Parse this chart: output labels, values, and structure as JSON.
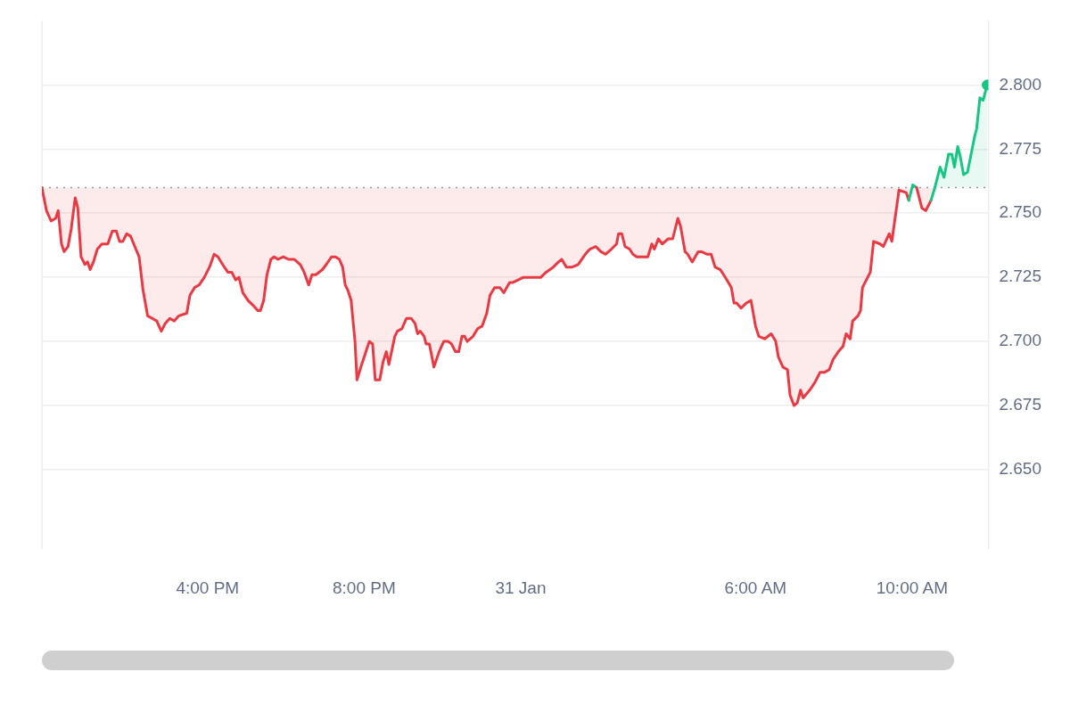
{
  "chart_data": {
    "type": "area",
    "xlim": [
      "--01-30T11:46",
      "--01-31T11:57"
    ],
    "xticks": [
      {
        "value": "--01-30T16:00",
        "label": "4:00 PM"
      },
      {
        "value": "--01-30T20:00",
        "label": "8:00 PM"
      },
      {
        "value": "--01-31T00:00",
        "label": "31 Jan"
      },
      {
        "value": "--01-31T06:00",
        "label": "6:00 AM"
      },
      {
        "value": "--01-31T10:00",
        "label": "10:00 AM"
      }
    ],
    "ylim": [
      2.619,
      2.825
    ],
    "yticks": [
      {
        "value": 2.65,
        "label": "2.650"
      },
      {
        "value": 2.675,
        "label": "2.675"
      },
      {
        "value": 2.7,
        "label": "2.700"
      },
      {
        "value": 2.725,
        "label": "2.725"
      },
      {
        "value": 2.75,
        "label": "2.750"
      },
      {
        "value": 2.775,
        "label": "2.775"
      },
      {
        "value": 2.8,
        "label": "2.800"
      }
    ],
    "grid": "y",
    "legend": false,
    "ref_lines": [
      {
        "axis": "y",
        "value": 2.76,
        "color": "#999999",
        "line_style": "dotted"
      }
    ],
    "series": [
      {
        "color": "#ea3943",
        "x": [
          "--01-30T11:46",
          "--01-30T11:53",
          "--01-30T12:00",
          "--01-30T12:07",
          "--01-30T12:11",
          "--01-30T12:16",
          "--01-30T12:20",
          "--01-30T12:26",
          "--01-30T12:31",
          "--01-30T12:37",
          "--01-30T12:41",
          "--01-30T12:46",
          "--01-30T12:52",
          "--01-30T12:56",
          "--01-30T13:00",
          "--01-30T13:05",
          "--01-30T13:11",
          "--01-30T13:18",
          "--01-30T13:27",
          "--01-30T13:34",
          "--01-30T13:40",
          "--01-30T13:45",
          "--01-30T13:50",
          "--01-30T13:56",
          "--01-30T14:02",
          "--01-30T14:10",
          "--01-30T14:15",
          "--01-30T14:21",
          "--01-30T14:28",
          "--01-30T14:35",
          "--01-30T14:42",
          "--01-30T14:49",
          "--01-30T14:55",
          "--01-30T15:02",
          "--01-30T15:09",
          "--01-30T15:16",
          "--01-30T15:28",
          "--01-30T15:33",
          "--01-30T15:40",
          "--01-30T15:47",
          "--01-30T15:55",
          "--01-30T16:03",
          "--01-30T16:10",
          "--01-30T16:16",
          "--01-30T16:23",
          "--01-30T16:31",
          "--01-30T16:37",
          "--01-30T16:43",
          "--01-30T16:48",
          "--01-30T16:54",
          "--01-30T17:02",
          "--01-30T17:10",
          "--01-30T17:17",
          "--01-30T17:21",
          "--01-30T17:26",
          "--01-30T17:31",
          "--01-30T17:37",
          "--01-30T17:42",
          "--01-30T17:48",
          "--01-30T17:56",
          "--01-30T18:04",
          "--01-30T18:13",
          "--01-30T18:22",
          "--01-30T18:28",
          "--01-30T18:35",
          "--01-30T18:40",
          "--01-30T18:46",
          "--01-30T18:56",
          "--01-30T19:02",
          "--01-30T19:10",
          "--01-30T19:16",
          "--01-30T19:22",
          "--01-30T19:27",
          "--01-30T19:31",
          "--01-30T19:35",
          "--01-30T19:40",
          "--01-30T19:46",
          "--01-30T19:49",
          "--01-30T19:55",
          "--01-30T20:04",
          "--01-30T20:08",
          "--01-30T20:13",
          "--01-30T20:17",
          "--01-30T20:24",
          "--01-30T20:29",
          "--01-30T20:34",
          "--01-30T20:38",
          "--01-30T20:47",
          "--01-30T20:51",
          "--01-30T20:58",
          "--01-30T21:05",
          "--01-30T21:12",
          "--01-30T21:18",
          "--01-30T21:22",
          "--01-30T21:26",
          "--01-30T21:32",
          "--01-30T21:35",
          "--01-30T21:40",
          "--01-30T21:47",
          "--01-30T21:55",
          "--01-30T22:02",
          "--01-30T22:09",
          "--01-30T22:14",
          "--01-30T22:20",
          "--01-30T22:25",
          "--01-30T22:30",
          "--01-30T22:34",
          "--01-30T22:38",
          "--01-30T22:47",
          "--01-30T22:54",
          "--01-30T23:01",
          "--01-30T23:08",
          "--01-30T23:13",
          "--01-30T23:20",
          "--01-30T23:28",
          "--01-30T23:34",
          "--01-30T23:43",
          "--01-30T23:48",
          "--01-30T23:56",
          "--01-31T00:04",
          "--01-31T00:12",
          "--01-31T00:22",
          "--01-31T00:31",
          "--01-31T00:39",
          "--01-31T00:50",
          "--01-31T00:58",
          "--01-31T01:03",
          "--01-31T01:10",
          "--01-31T01:19",
          "--01-31T01:28",
          "--01-31T01:39",
          "--01-31T01:46",
          "--01-31T01:55",
          "--01-31T02:03",
          "--01-31T02:10",
          "--01-31T02:19",
          "--01-31T02:27",
          "--01-31T02:30",
          "--01-31T02:35",
          "--01-31T02:40",
          "--01-31T02:47",
          "--01-31T02:52",
          "--01-31T02:58",
          "--01-31T03:07",
          "--01-31T03:15",
          "--01-31T03:21",
          "--01-31T03:25",
          "--01-31T03:31",
          "--01-31T03:37",
          "--01-31T03:46",
          "--01-31T03:53",
          "--01-31T04:01",
          "--01-31T04:05",
          "--01-31T04:12",
          "--01-31T04:16",
          "--01-31T04:23",
          "--01-31T04:32",
          "--01-31T04:37",
          "--01-31T04:46",
          "--01-31T04:52",
          "--01-31T04:58",
          "--01-31T05:06",
          "--01-31T05:16",
          "--01-31T05:23",
          "--01-31T05:27",
          "--01-31T05:31",
          "--01-31T05:38",
          "--01-31T05:46",
          "--01-31T05:53",
          "--01-31T06:00",
          "--01-31T06:05",
          "--01-31T06:14",
          "--01-31T06:24",
          "--01-31T06:31",
          "--01-31T06:35",
          "--01-31T06:42",
          "--01-31T06:49",
          "--01-31T06:53",
          "--01-31T06:59",
          "--01-31T07:04",
          "--01-31T07:09",
          "--01-31T07:13",
          "--01-31T07:23",
          "--01-31T07:31",
          "--01-31T07:39",
          "--01-31T07:46",
          "--01-31T07:53",
          "--01-31T07:59",
          "--01-31T08:07",
          "--01-31T08:14",
          "--01-31T08:19",
          "--01-31T08:25",
          "--01-31T08:29",
          "--01-31T08:37",
          "--01-31T08:41",
          "--01-31T08:44",
          "--01-31T08:56",
          "--01-31T09:01",
          "--01-31T09:11",
          "--01-31T09:16",
          "--01-31T09:25",
          "--01-31T09:29",
          "--01-31T09:40",
          "--01-31T09:51",
          "--01-31T09:55",
          "--01-31T10:01",
          "--01-31T10:07",
          "--01-31T10:15",
          "--01-31T10:21",
          "--01-31T10:29",
          "--01-31T10:35",
          "--01-31T10:43",
          "--01-31T10:49",
          "--01-31T10:56",
          "--01-31T11:01",
          "--01-31T11:05",
          "--01-31T11:10",
          "--01-31T11:14",
          "--01-31T11:19",
          "--01-31T11:25",
          "--01-31T11:36",
          "--01-31T11:39",
          "--01-31T11:44",
          "--01-31T11:49",
          "--01-31T11:55"
        ],
        "values": [
          2.76,
          2.751,
          2.747,
          2.748,
          2.751,
          2.738,
          2.735,
          2.737,
          2.744,
          2.756,
          2.752,
          2.733,
          2.73,
          2.731,
          2.728,
          2.731,
          2.736,
          2.738,
          2.738,
          2.743,
          2.743,
          2.739,
          2.739,
          2.742,
          2.741,
          2.736,
          2.733,
          2.72,
          2.71,
          2.709,
          2.708,
          2.704,
          2.707,
          2.709,
          2.708,
          2.71,
          2.711,
          2.718,
          2.721,
          2.722,
          2.725,
          2.729,
          2.734,
          2.733,
          2.73,
          2.727,
          2.727,
          2.724,
          2.725,
          2.719,
          2.716,
          2.714,
          2.712,
          2.712,
          2.716,
          2.726,
          2.732,
          2.733,
          2.732,
          2.733,
          2.732,
          2.732,
          2.73,
          2.727,
          2.722,
          2.726,
          2.726,
          2.728,
          2.73,
          2.733,
          2.733,
          2.732,
          2.729,
          2.722,
          2.72,
          2.716,
          2.7,
          2.685,
          2.69,
          2.697,
          2.7,
          2.699,
          2.685,
          2.685,
          2.692,
          2.696,
          2.691,
          2.702,
          2.704,
          2.705,
          2.709,
          2.709,
          2.707,
          2.703,
          2.704,
          2.702,
          2.699,
          2.699,
          2.69,
          2.696,
          2.7,
          2.7,
          2.699,
          2.696,
          2.696,
          2.702,
          2.702,
          2.7,
          2.702,
          2.705,
          2.706,
          2.711,
          2.718,
          2.721,
          2.721,
          2.719,
          2.723,
          2.723,
          2.724,
          2.725,
          2.725,
          2.725,
          2.725,
          2.727,
          2.729,
          2.731,
          2.732,
          2.729,
          2.729,
          2.73,
          2.734,
          2.736,
          2.737,
          2.735,
          2.734,
          2.736,
          2.738,
          2.742,
          2.742,
          2.737,
          2.736,
          2.734,
          2.733,
          2.733,
          2.733,
          2.738,
          2.736,
          2.74,
          2.738,
          2.74,
          2.74,
          2.748,
          2.745,
          2.735,
          2.734,
          2.731,
          2.735,
          2.735,
          2.734,
          2.734,
          2.729,
          2.728,
          2.724,
          2.721,
          2.715,
          2.715,
          2.713,
          2.715,
          2.716,
          2.706,
          2.702,
          2.701,
          2.703,
          2.7,
          2.694,
          2.69,
          2.689,
          2.679,
          2.675,
          2.676,
          2.681,
          2.678,
          2.681,
          2.684,
          2.688,
          2.688,
          2.689,
          2.693,
          2.696,
          2.698,
          2.703,
          2.701,
          2.708,
          2.71,
          2.712,
          2.721,
          2.727,
          2.739,
          2.738,
          2.737,
          2.742,
          2.739,
          2.759,
          2.758,
          2.755,
          2.761,
          2.76,
          2.752,
          2.751,
          2.755,
          2.76,
          2.768,
          2.764,
          2.773,
          2.773,
          2.768,
          2.776,
          2.772,
          2.765,
          2.766,
          2.78,
          2.783,
          2.795,
          2.794,
          2.8
        ],
        "colors": [
          "#ea3943",
          "#ea3943",
          "#ea3943",
          "#ea3943",
          "#ea3943",
          "#ea3943",
          "#ea3943",
          "#ea3943",
          "#ea3943",
          "#ea3943",
          "#ea3943",
          "#ea3943",
          "#ea3943",
          "#ea3943",
          "#ea3943",
          "#ea3943",
          "#ea3943",
          "#ea3943",
          "#ea3943",
          "#ea3943",
          "#ea3943",
          "#ea3943",
          "#ea3943",
          "#ea3943",
          "#ea3943",
          "#ea3943",
          "#ea3943",
          "#ea3943",
          "#ea3943",
          "#ea3943",
          "#ea3943",
          "#ea3943",
          "#ea3943",
          "#ea3943",
          "#ea3943",
          "#ea3943",
          "#ea3943",
          "#ea3943",
          "#ea3943",
          "#ea3943",
          "#ea3943",
          "#ea3943",
          "#ea3943",
          "#ea3943",
          "#ea3943",
          "#ea3943",
          "#ea3943",
          "#ea3943",
          "#ea3943",
          "#ea3943",
          "#ea3943",
          "#ea3943",
          "#ea3943",
          "#ea3943",
          "#ea3943",
          "#ea3943",
          "#ea3943",
          "#ea3943",
          "#ea3943",
          "#ea3943",
          "#ea3943",
          "#ea3943",
          "#ea3943",
          "#ea3943",
          "#ea3943",
          "#ea3943",
          "#ea3943",
          "#ea3943",
          "#ea3943",
          "#ea3943",
          "#ea3943",
          "#ea3943",
          "#ea3943",
          "#ea3943",
          "#ea3943",
          "#ea3943",
          "#ea3943",
          "#ea3943",
          "#ea3943",
          "#ea3943",
          "#ea3943",
          "#ea3943",
          "#ea3943",
          "#ea3943",
          "#ea3943",
          "#ea3943",
          "#ea3943",
          "#ea3943",
          "#ea3943",
          "#ea3943",
          "#ea3943",
          "#ea3943",
          "#ea3943",
          "#ea3943",
          "#ea3943",
          "#ea3943",
          "#ea3943",
          "#ea3943",
          "#ea3943",
          "#ea3943",
          "#ea3943",
          "#ea3943",
          "#ea3943",
          "#ea3943",
          "#ea3943",
          "#ea3943",
          "#ea3943",
          "#ea3943",
          "#ea3943",
          "#ea3943",
          "#ea3943",
          "#ea3943",
          "#ea3943",
          "#ea3943",
          "#ea3943",
          "#ea3943",
          "#ea3943",
          "#ea3943",
          "#ea3943",
          "#ea3943",
          "#ea3943",
          "#ea3943",
          "#ea3943",
          "#ea3943",
          "#ea3943",
          "#ea3943",
          "#ea3943",
          "#ea3943",
          "#ea3943",
          "#ea3943",
          "#ea3943",
          "#ea3943",
          "#ea3943",
          "#ea3943",
          "#ea3943",
          "#ea3943",
          "#ea3943",
          "#ea3943",
          "#ea3943",
          "#ea3943",
          "#ea3943",
          "#ea3943",
          "#ea3943",
          "#ea3943",
          "#ea3943",
          "#ea3943",
          "#ea3943",
          "#ea3943",
          "#ea3943",
          "#ea3943",
          "#ea3943",
          "#ea3943",
          "#ea3943",
          "#ea3943",
          "#ea3943",
          "#ea3943",
          "#ea3943",
          "#ea3943",
          "#ea3943",
          "#ea3943",
          "#ea3943",
          "#ea3943",
          "#ea3943",
          "#ea3943",
          "#ea3943",
          "#ea3943",
          "#ea3943",
          "#ea3943",
          "#ea3943",
          "#ea3943",
          "#ea3943",
          "#ea3943",
          "#ea3943",
          "#ea3943",
          "#ea3943",
          "#ea3943",
          "#ea3943",
          "#ea3943",
          "#ea3943",
          "#ea3943",
          "#ea3943",
          "#ea3943",
          "#ea3943",
          "#ea3943",
          "#ea3943",
          "#ea3943",
          "#ea3943",
          "#ea3943",
          "#ea3943",
          "#ea3943",
          "#ea3943",
          "#ea3943",
          "#ea3943",
          "#ea3943",
          "#ea3943",
          "#ea3943",
          "#ea3943",
          "#ea3943",
          "#ea3943",
          "#ea3943",
          "#ea3943",
          "#ea3943",
          "#ea3943",
          "#ea3943",
          "#ea3943",
          "#16c784",
          "#16c784",
          "#ea3943",
          "#ea3943",
          "#ea3943",
          "#16c784",
          "#16c784",
          "#16c784",
          "#16c784",
          "#16c784",
          "#16c784",
          "#16c784",
          "#16c784",
          "#16c784",
          "#16c784",
          "#16c784",
          "#16c784",
          "#16c784",
          "#16c784",
          "#16c784"
        ]
      },
      {
        "type": "scatter",
        "color": "#16c784",
        "marker": "circle",
        "x": [
          "--01-31T11:55"
        ],
        "values": [
          2.8
        ]
      }
    ]
  }
}
